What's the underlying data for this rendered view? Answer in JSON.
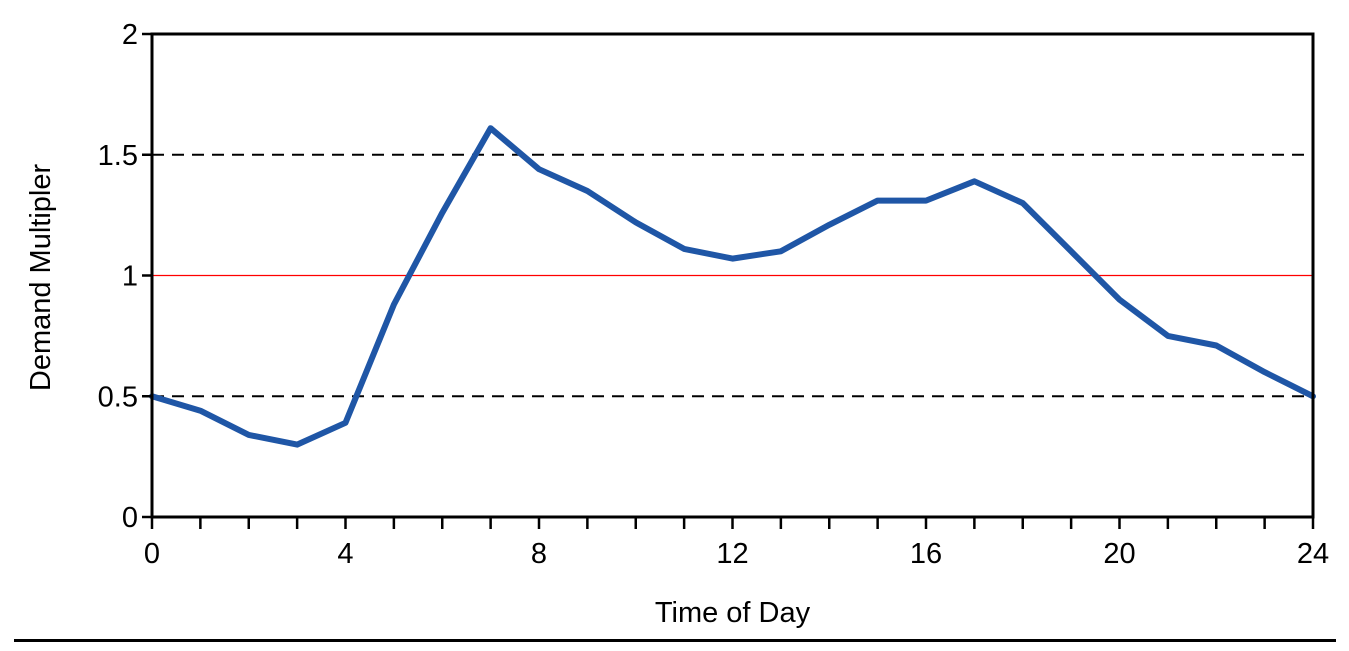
{
  "chart_data": {
    "type": "line",
    "title": "",
    "xlabel": "Time of Day",
    "ylabel": "Demand Multipler",
    "xlim": [
      0,
      24
    ],
    "ylim": [
      0,
      2
    ],
    "x_ticks": [
      0,
      4,
      8,
      12,
      16,
      20,
      24
    ],
    "x_minor_ticks": [
      1,
      2,
      3,
      5,
      6,
      7,
      9,
      10,
      11,
      13,
      14,
      15,
      17,
      18,
      19,
      21,
      22,
      23
    ],
    "y_ticks": [
      0,
      0.5,
      1,
      1.5,
      2
    ],
    "y_tick_labels": [
      "0",
      "0.5",
      "1",
      "1.5",
      "2"
    ],
    "reference_lines": [
      {
        "y": 0.5,
        "style": "dashed",
        "color": "#000000"
      },
      {
        "y": 1,
        "style": "solid",
        "color": "#ff0000"
      },
      {
        "y": 1.5,
        "style": "dashed",
        "color": "#000000"
      }
    ],
    "series": [
      {
        "color": "#1f56a6",
        "x": [
          0,
          1,
          2,
          3,
          4,
          5,
          6,
          7,
          8,
          9,
          10,
          11,
          12,
          13,
          14,
          15,
          16,
          17,
          18,
          19,
          20,
          21,
          22,
          23,
          24
        ],
        "values": [
          0.5,
          0.44,
          0.34,
          0.3,
          0.39,
          0.88,
          1.26,
          1.61,
          1.44,
          1.35,
          1.22,
          1.11,
          1.07,
          1.1,
          1.21,
          1.31,
          1.31,
          1.39,
          1.3,
          1.1,
          0.9,
          0.75,
          0.71,
          0.6,
          0.5
        ]
      }
    ],
    "grid": false,
    "legend": "none"
  }
}
